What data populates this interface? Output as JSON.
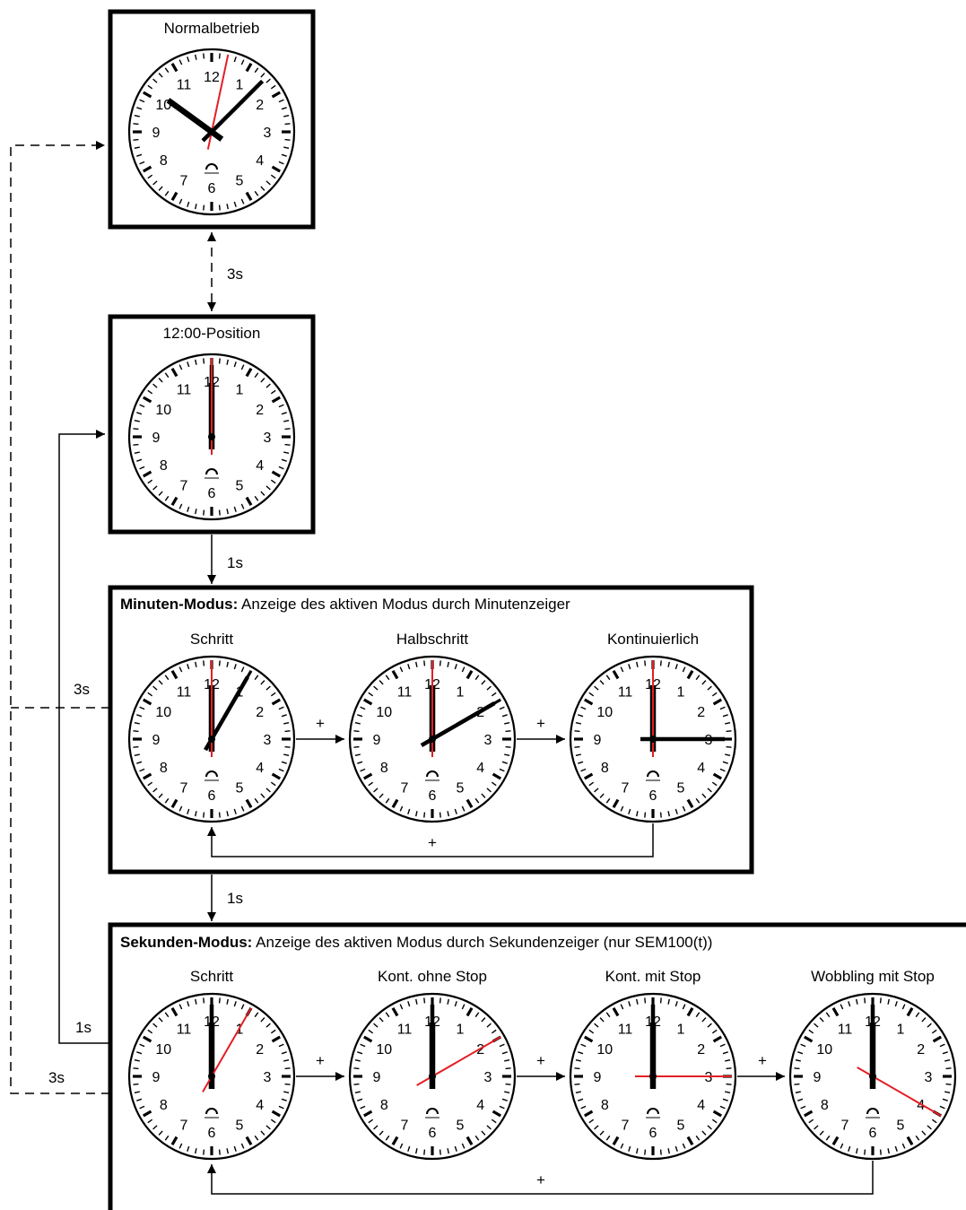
{
  "states": {
    "normal": {
      "title": "Normalbetrieb"
    },
    "pos12": {
      "title": "12:00-Position"
    },
    "minuten": {
      "heading_bold": "Minuten-Modus:",
      "heading_rest": " Anzeige des aktiven Modus durch Minutenzeiger",
      "clocks": [
        {
          "label": "Schritt"
        },
        {
          "label": "Halbschritt"
        },
        {
          "label": "Kontinuierlich"
        }
      ]
    },
    "sekunden": {
      "heading_bold": "Sekunden-Modus:",
      "heading_rest": " Anzeige des aktiven Modus durch Sekundenzeiger (nur SEM100(t))",
      "clocks": [
        {
          "label": "Schritt"
        },
        {
          "label": "Kont. ohne Stop"
        },
        {
          "label": "Kont. mit Stop"
        },
        {
          "label": "Wobbling mit Stop"
        }
      ]
    }
  },
  "clock_faces": {
    "normal": {
      "hour": 10.2,
      "minute": 7.5,
      "second": 2
    },
    "pos12": {
      "hour": 12,
      "minute": 0,
      "second": 0
    },
    "min_schritt": {
      "hour": 12,
      "minute": 5,
      "second": 0
    },
    "min_halbschritt": {
      "hour": 12,
      "minute": 10,
      "second": 0
    },
    "min_kontinuierlich": {
      "hour": 12,
      "minute": 15,
      "second": 0
    },
    "sek_schritt": {
      "hour": 12,
      "minute": 0,
      "second": 5
    },
    "sek_kont_ohne_stop": {
      "hour": 12,
      "minute": 0,
      "second": 10
    },
    "sek_kont_mit_stop": {
      "hour": 12,
      "minute": 0,
      "second": 15
    },
    "sek_wobbling": {
      "hour": 12,
      "minute": 0,
      "second": 20
    }
  },
  "dial_numerals": [
    "1",
    "2",
    "3",
    "4",
    "5",
    "6",
    "7",
    "8",
    "9",
    "10",
    "11",
    "12"
  ],
  "transitions": {
    "normal_pos12": "3s",
    "pos12_minuten": "1s",
    "minuten_sekunden": "1s",
    "minuten_back": "3s",
    "sekunden_back_pos12": "1s",
    "sekunden_back_normal": "3s",
    "plus": "+"
  },
  "colors": {
    "second_hand": "#e31e24",
    "hands": "#000000"
  }
}
